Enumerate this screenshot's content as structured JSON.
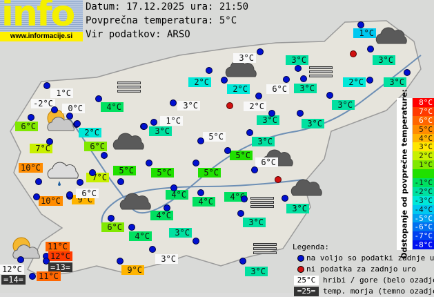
{
  "logo": {
    "word": "info",
    "url": "www.informacije.si"
  },
  "header": {
    "date_line": "Datum: 17.12.2025 ura: 21:50",
    "avg_line": "Povprečna temperatura: 5°C",
    "source_line": "Vir podatkov: ARSO",
    "average_temp": 5
  },
  "scale": {
    "title": "Odstopanje od povprečne temperature:",
    "rows": [
      {
        "label": "8°C",
        "color": "#ff0000",
        "text": "#fff"
      },
      {
        "label": "7°C",
        "color": "#ff3a00",
        "text": "#fff"
      },
      {
        "label": "6°C",
        "color": "#ff6600",
        "text": "#fff"
      },
      {
        "label": "5°C",
        "color": "#ff8c00",
        "text": "#111"
      },
      {
        "label": "4°C",
        "color": "#ffb400",
        "text": "#111"
      },
      {
        "label": "3°C",
        "color": "#ffe600",
        "text": "#111"
      },
      {
        "label": "2°C",
        "color": "#c8f000",
        "text": "#111"
      },
      {
        "label": "1°C",
        "color": "#80e800",
        "text": "#111"
      },
      {
        "label": "",
        "color": "#20e000",
        "text": "#111"
      },
      {
        "label": "-1°C",
        "color": "#00e060",
        "text": "#111"
      },
      {
        "label": "-2°C",
        "color": "#00e0a0",
        "text": "#111"
      },
      {
        "label": "-3°C",
        "color": "#00e8d8",
        "text": "#111"
      },
      {
        "label": "-4°C",
        "color": "#00c8f0",
        "text": "#111"
      },
      {
        "label": "-5°C",
        "color": "#00a0f0",
        "text": "#fff"
      },
      {
        "label": "-6°C",
        "color": "#0070f0",
        "text": "#fff"
      },
      {
        "label": "-7°C",
        "color": "#0040f0",
        "text": "#fff"
      },
      {
        "label": "-8°C",
        "color": "#0010f0",
        "text": "#fff"
      }
    ]
  },
  "legend": {
    "title": "Legenda:",
    "available": "na voljo so podatki zadnje ure",
    "missing": "ni podatka za zadnjo uro",
    "mountain_sample": "25°C",
    "mountain_text": "hribi / gore (belo ozadje)",
    "sea_sample": "=25=",
    "sea_text": "temp. morja (temno ozadje)",
    "dot_available": "#0010d0",
    "dot_missing": "#d01010"
  },
  "stations": [
    {
      "t": "1°C",
      "k": "v"
    },
    {
      "t": "3°C",
      "k": "v"
    },
    {
      "t": "3°C",
      "k": "v"
    },
    {
      "t": "3°C",
      "k": "v"
    },
    {
      "t": "2°C",
      "k": "v"
    },
    {
      "t": "3°C",
      "k": "v"
    },
    {
      "t": "3°C",
      "k": "v"
    },
    {
      "t": "2°C",
      "k": "v"
    },
    {
      "t": "2°C",
      "k": "v"
    },
    {
      "t": "3°C",
      "k": "v"
    },
    {
      "t": "3°C",
      "k": "v"
    },
    {
      "t": "3°C",
      "k": "v"
    },
    {
      "t": "3°C",
      "k": "v"
    },
    {
      "t": "4°C",
      "k": "v"
    },
    {
      "t": "6°C",
      "k": "v"
    },
    {
      "t": "2°C",
      "k": "v"
    },
    {
      "t": "6°C",
      "k": "v"
    },
    {
      "t": "7°C",
      "k": "v"
    },
    {
      "t": "10°C",
      "k": "v"
    },
    {
      "t": "7°C",
      "k": "v"
    },
    {
      "t": "5°C",
      "k": "v"
    },
    {
      "t": "5°C",
      "k": "v"
    },
    {
      "t": "5°C",
      "k": "v"
    },
    {
      "t": "5°C",
      "k": "v"
    },
    {
      "t": "10°C",
      "k": "v"
    },
    {
      "t": "9°C",
      "k": "v"
    },
    {
      "t": "4°C",
      "k": "v"
    },
    {
      "t": "4°C",
      "k": "v"
    },
    {
      "t": "4°C",
      "k": "v"
    },
    {
      "t": "4°C",
      "k": "v"
    },
    {
      "t": "6°C",
      "k": "v"
    },
    {
      "t": "4°C",
      "k": "v"
    },
    {
      "t": "3°C",
      "k": "v"
    },
    {
      "t": "3°C",
      "k": "v"
    },
    {
      "t": "3°C",
      "k": "v"
    },
    {
      "t": "3°C",
      "k": "v"
    },
    {
      "t": "9°C",
      "k": "v"
    },
    {
      "t": "11°C",
      "k": "v"
    },
    {
      "t": "12°C",
      "k": "v"
    },
    {
      "t": "=13=",
      "k": "s"
    },
    {
      "t": "12°C",
      "k": "m"
    },
    {
      "t": "=14=",
      "k": "s"
    },
    {
      "t": "11°C",
      "k": "v"
    },
    {
      "t": "1°C",
      "k": "m"
    },
    {
      "t": "-2°C",
      "k": "m"
    },
    {
      "t": "0°C",
      "k": "m"
    },
    {
      "t": "3°C",
      "k": "m"
    },
    {
      "t": "6°C",
      "k": "m"
    },
    {
      "t": "2°C",
      "k": "m"
    },
    {
      "t": "3°C",
      "k": "m"
    },
    {
      "t": "1°C",
      "k": "m"
    },
    {
      "t": "5°C",
      "k": "m"
    },
    {
      "t": "6°C",
      "k": "m"
    },
    {
      "t": "6°C",
      "k": "m"
    },
    {
      "t": "3°C",
      "k": "m"
    }
  ],
  "missing_stations": 3,
  "weather_icons": [
    "cloud",
    "cloud",
    "cloud",
    "cloud",
    "cloud",
    "cloud",
    "partly-cloudy",
    "partly-cloudy",
    "rain-cloud",
    "fog",
    "fog",
    "fog",
    "fog"
  ]
}
